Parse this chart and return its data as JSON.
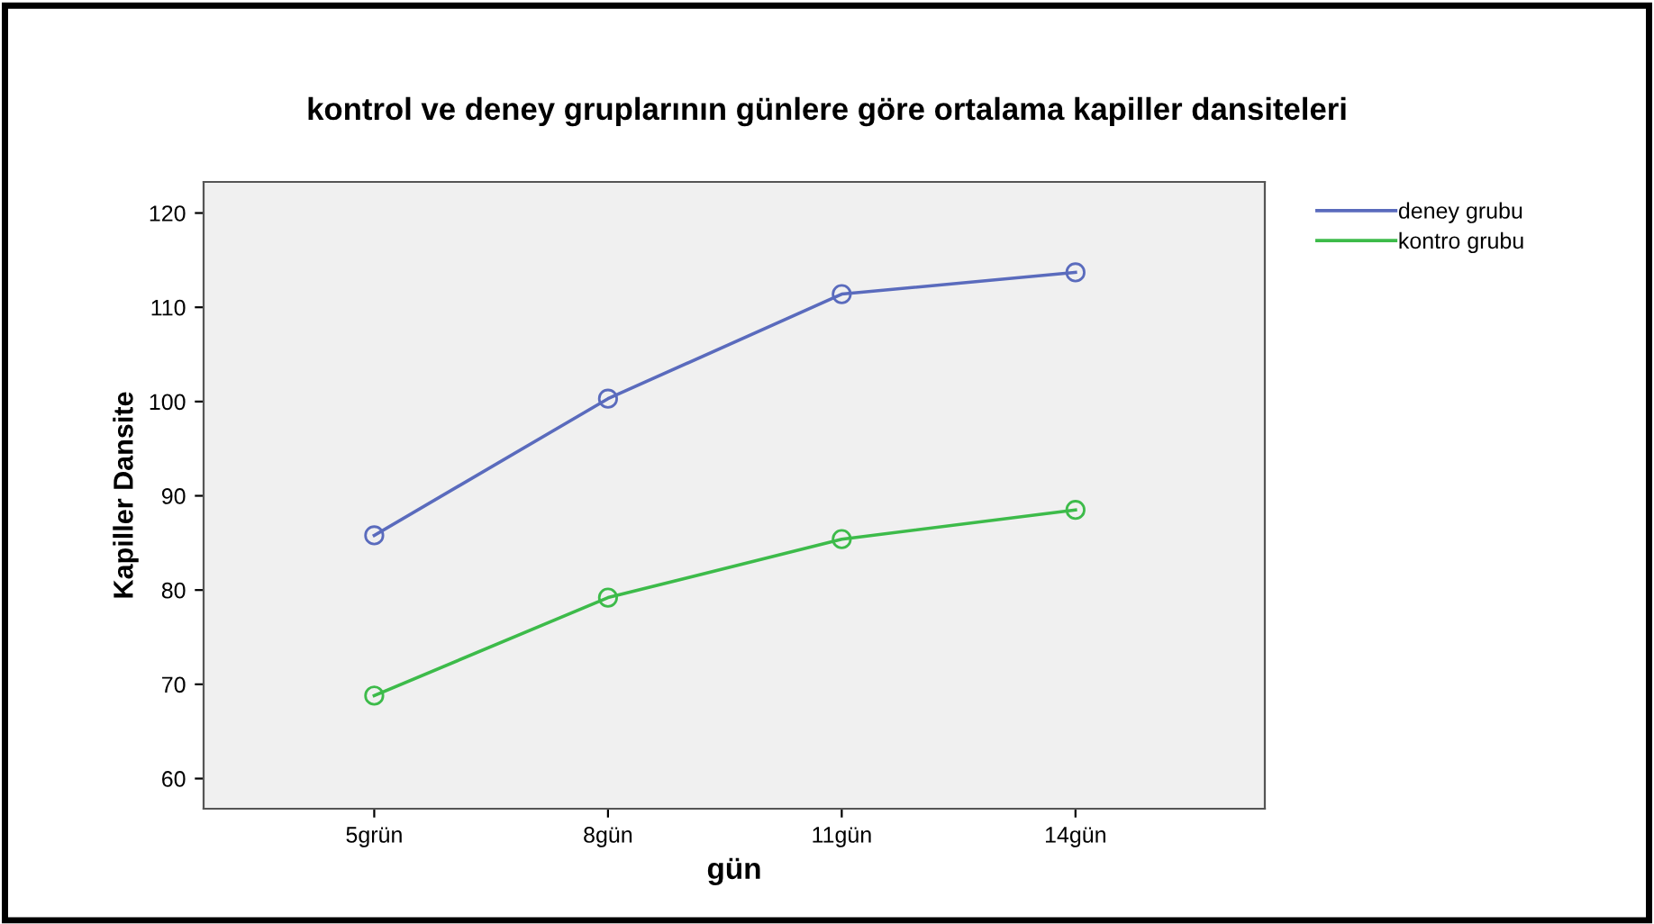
{
  "chart_data": {
    "type": "line",
    "title": "kontrol ve deney gruplarının günlere göre ortalama kapiller dansiteleri",
    "xlabel": "gün",
    "ylabel": "Kapiller Dansite",
    "categories": [
      "5grün",
      "8gün",
      "11gün",
      "14gün"
    ],
    "series": [
      {
        "name": "deney grubu",
        "color": "#5a6bbd",
        "values": [
          85.8,
          100.3,
          111.4,
          113.7
        ]
      },
      {
        "name": "kontro grubu",
        "color": "#3dbb4a",
        "values": [
          68.8,
          79.2,
          85.4,
          88.5
        ]
      }
    ],
    "ylim": [
      56.8,
      123.3
    ],
    "yticks": [
      60,
      70,
      80,
      90,
      100,
      110,
      120
    ],
    "grid": false,
    "legend": "top right",
    "marker": "circle",
    "line_style": "solid"
  }
}
